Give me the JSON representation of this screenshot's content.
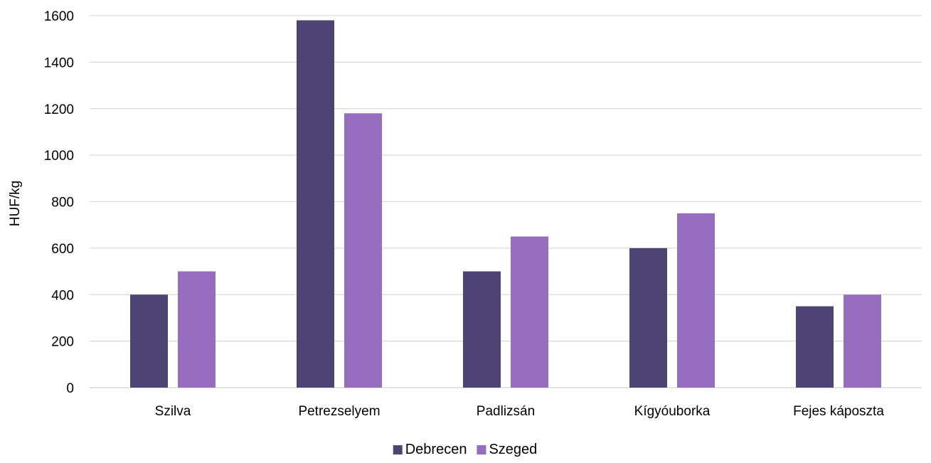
{
  "chart_data": {
    "type": "bar",
    "title": "",
    "xlabel": "",
    "ylabel": "HUF/kg",
    "categories": [
      "Szilva",
      "Petrezselyem",
      "Padlizsán",
      "Kígyóuborka",
      "Fejes káposzta"
    ],
    "series": [
      {
        "name": "Debrecen",
        "color": "#4e4474",
        "values": [
          400,
          1580,
          500,
          600,
          350
        ]
      },
      {
        "name": "Szeged",
        "color": "#976dc0",
        "values": [
          500,
          1180,
          650,
          750,
          400
        ]
      }
    ],
    "ylim": [
      0,
      1600
    ],
    "yticks": [
      0,
      200,
      400,
      600,
      800,
      1000,
      1200,
      1400,
      1600
    ],
    "grid": true,
    "legend_position": "bottom"
  }
}
